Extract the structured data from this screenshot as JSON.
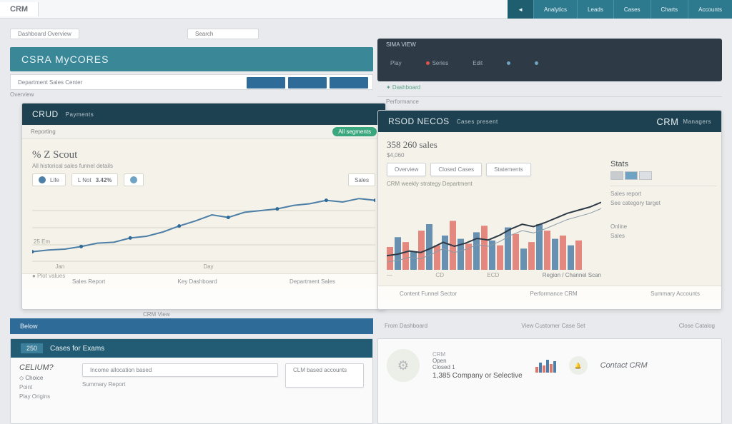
{
  "browser": {
    "tab_label": "CRM"
  },
  "topnav": {
    "items": [
      "Analytics",
      "Leads",
      "Cases",
      "Charts",
      "Accounts"
    ],
    "icon": "◄"
  },
  "back_band": {
    "title": "CSRA MyCORES"
  },
  "search_box": {
    "placeholder": "Search"
  },
  "pretab_label": "Dashboard Overview",
  "meta": {
    "label": "Department Sales Center",
    "crumb": "Overview"
  },
  "dark_toolbar": {
    "title": "SIMA VIEW",
    "chips": [
      "Play",
      "Series",
      "Edit",
      "—",
      "—"
    ]
  },
  "left_panel": {
    "head": "CRUD",
    "head_sub": "Payments",
    "subbar": "Reporting",
    "pill": "All segments",
    "chart": {
      "type": "line",
      "title": "% Z Scout",
      "caption": "All historical sales funnel details",
      "stat_cells": [
        {
          "label": "Life",
          "value": ""
        },
        {
          "label": "L Not",
          "value": "3.42%"
        },
        {
          "label": "",
          "value": ""
        },
        {
          "label": "Sales",
          "value": ""
        }
      ],
      "x_labels": [
        "Jan",
        "",
        "",
        "Day",
        "",
        "",
        ""
      ],
      "y_left": "25 Em",
      "points": [
        12,
        14,
        15,
        18,
        22,
        23,
        28,
        30,
        35,
        42,
        48,
        55,
        52,
        58,
        60,
        62,
        66,
        68,
        72,
        70,
        74,
        72
      ],
      "line_color": "#4d7fa7",
      "dot_color": "#2f6b99",
      "grid_color": "#d8d6c8",
      "bg": "#f4f2e9"
    },
    "footer": [
      "Sales Report",
      "Key Dashboard",
      "Department Sales"
    ],
    "under_footer": "CRM View"
  },
  "right_panel": {
    "head": "RSOD NECOS",
    "head_sub": "Cases present",
    "head_right": "CRM",
    "head_right_sub": "Managers",
    "title": "358 260 sales",
    "title_sub": "$4,060",
    "desc_lines": [
      "Overview",
      "Closed Cases",
      "Statements"
    ],
    "band_label": "CRM weekly strategy Department",
    "bars": {
      "type": "bar",
      "values": [
        28,
        40,
        34,
        22,
        48,
        56,
        30,
        42,
        60,
        38,
        32,
        46,
        54,
        36,
        30,
        52,
        44,
        26,
        34,
        56,
        48,
        38,
        42,
        30,
        36
      ],
      "colors": [
        "#e0756c",
        "#4d7fa7",
        "#e0756c",
        "#4d7fa7",
        "#e0756c",
        "#4d7fa7",
        "#e0756c",
        "#4d7fa7",
        "#e0756c",
        "#4d7fa7",
        "#e0756c",
        "#4d7fa7",
        "#e0756c",
        "#4d7fa7",
        "#e0756c",
        "#4d7fa7",
        "#e0756c",
        "#4d7fa7",
        "#e0756c",
        "#4d7fa7",
        "#e0756c",
        "#4d7fa7",
        "#e0756c",
        "#4d7fa7",
        "#e0756c"
      ],
      "overlay_line": [
        18,
        20,
        24,
        22,
        28,
        35,
        30,
        34,
        40,
        38,
        44,
        52,
        58,
        55,
        60,
        66,
        72,
        76,
        80,
        86
      ],
      "overlay_color": "#2e3b47",
      "tick_labels": [
        "—",
        "—",
        "CD",
        "—",
        "ECD"
      ],
      "legend": "Region / Channel Scan"
    },
    "footer": [
      "Content Funnel Sector",
      "Performance CRM",
      "Summary Accounts"
    ]
  },
  "side": {
    "head": "Stats",
    "swatches": [
      "#c9ccCF",
      "#6fa3c4",
      "#dde0e3"
    ],
    "rows": [
      "Sales report",
      "See category target",
      "Online",
      "Sales"
    ]
  },
  "lower": {
    "bar_label": "Below",
    "strip_left": "From Dashboard",
    "strip_mid": "View Customer Case Set",
    "strip_right": "Close Catalog"
  },
  "row_left": {
    "tag": "250",
    "head": "Cases for Exams",
    "title": "CELIUM?",
    "opts": [
      "Choice",
      "Income allocation based",
      "",
      "CLM based accounts"
    ],
    "kv": [
      {
        "k": "Point",
        "v": "Summary Report"
      },
      {
        "k": "Play Origins",
        "v": ""
      }
    ]
  },
  "row_right": {
    "tag": "CRM",
    "lines": [
      "Open",
      "Closed 1",
      "1,385 Company or Selective"
    ],
    "right_label": "Contact CRM"
  }
}
